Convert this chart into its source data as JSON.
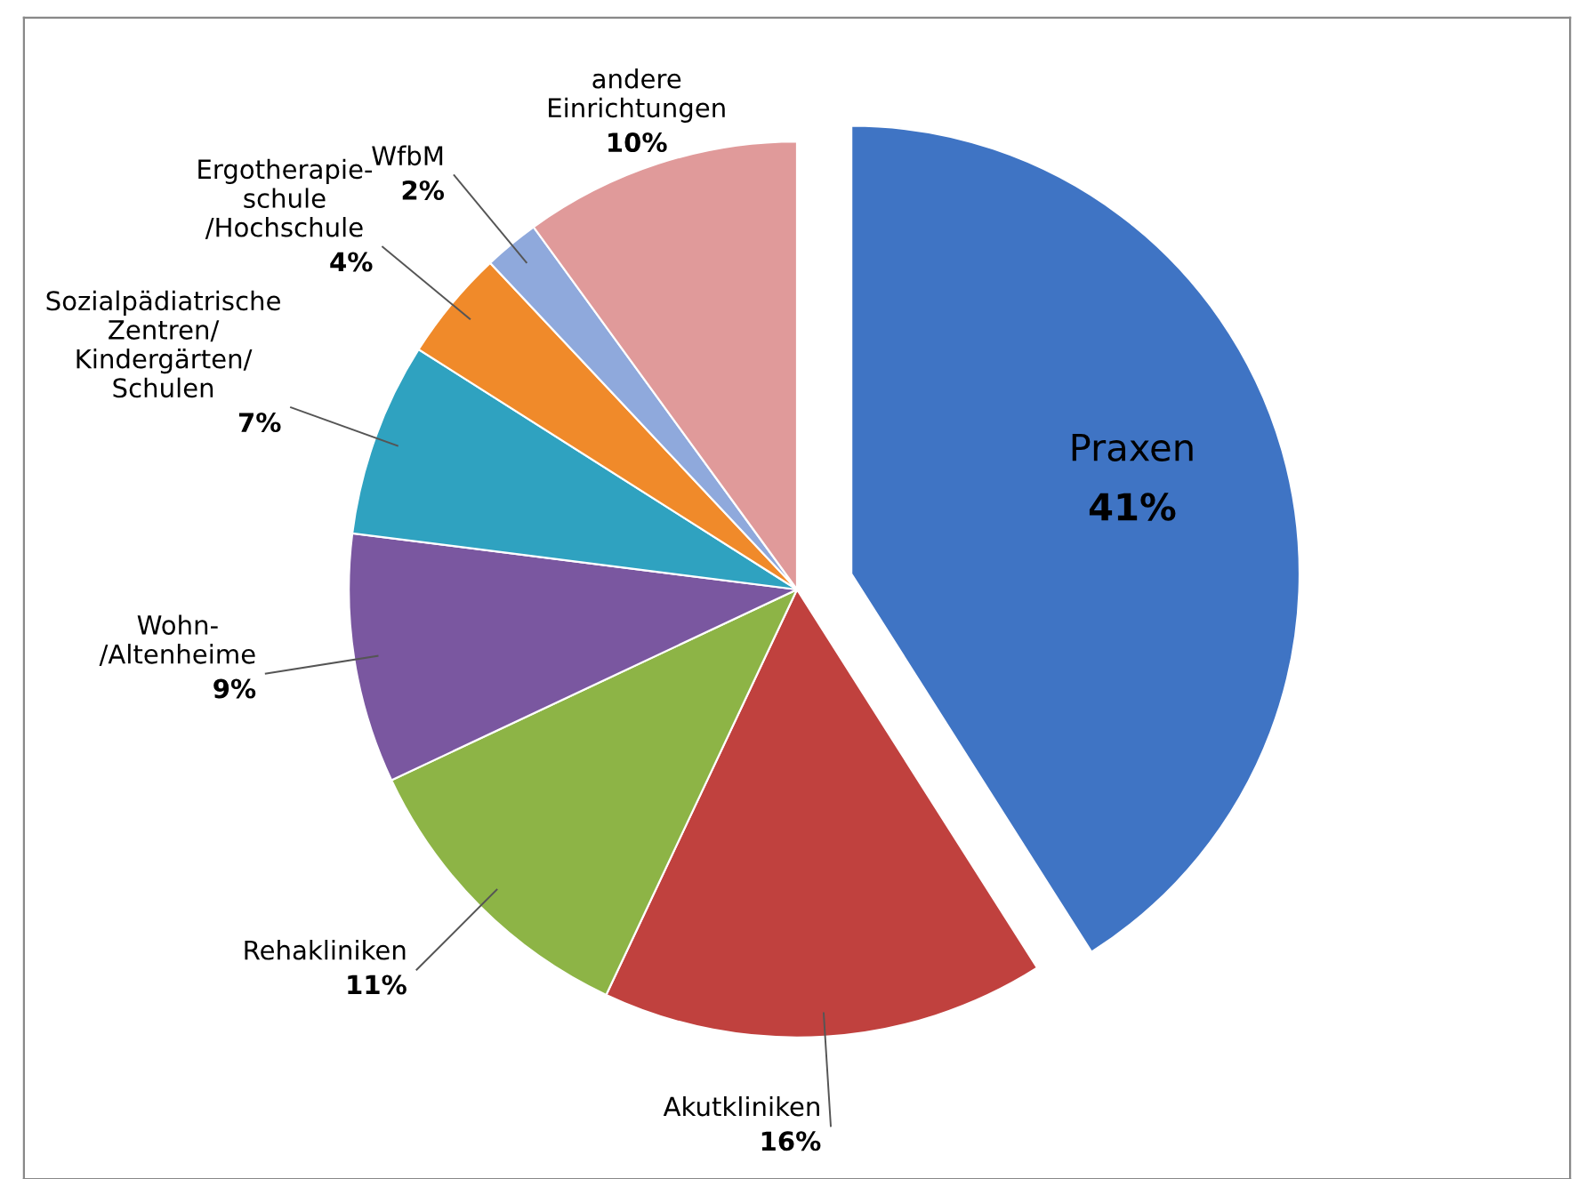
{
  "chart_data": {
    "type": "pie",
    "categories": [
      "Praxen",
      "Akutkliniken",
      "Rehakliniken",
      "Wohn-\n/Altenheime",
      "Sozialpädiatrische\nZentren/\nKindergärten/\nSchulen",
      "Ergotherapie-\nschule\n/Hochschule",
      "WfbM",
      "andere\nEinrichtungen"
    ],
    "values": [
      41,
      16,
      11,
      9,
      7,
      4,
      2,
      10
    ],
    "value_labels": [
      "41%",
      "16%",
      "11%",
      "9%",
      "7%",
      "4%",
      "2%",
      "10%"
    ],
    "colors": [
      "#3f74c4",
      "#c0413e",
      "#8db446",
      "#7a57a0",
      "#2fa2c0",
      "#f08a2a",
      "#8fa9dc",
      "#e09a9a"
    ]
  }
}
